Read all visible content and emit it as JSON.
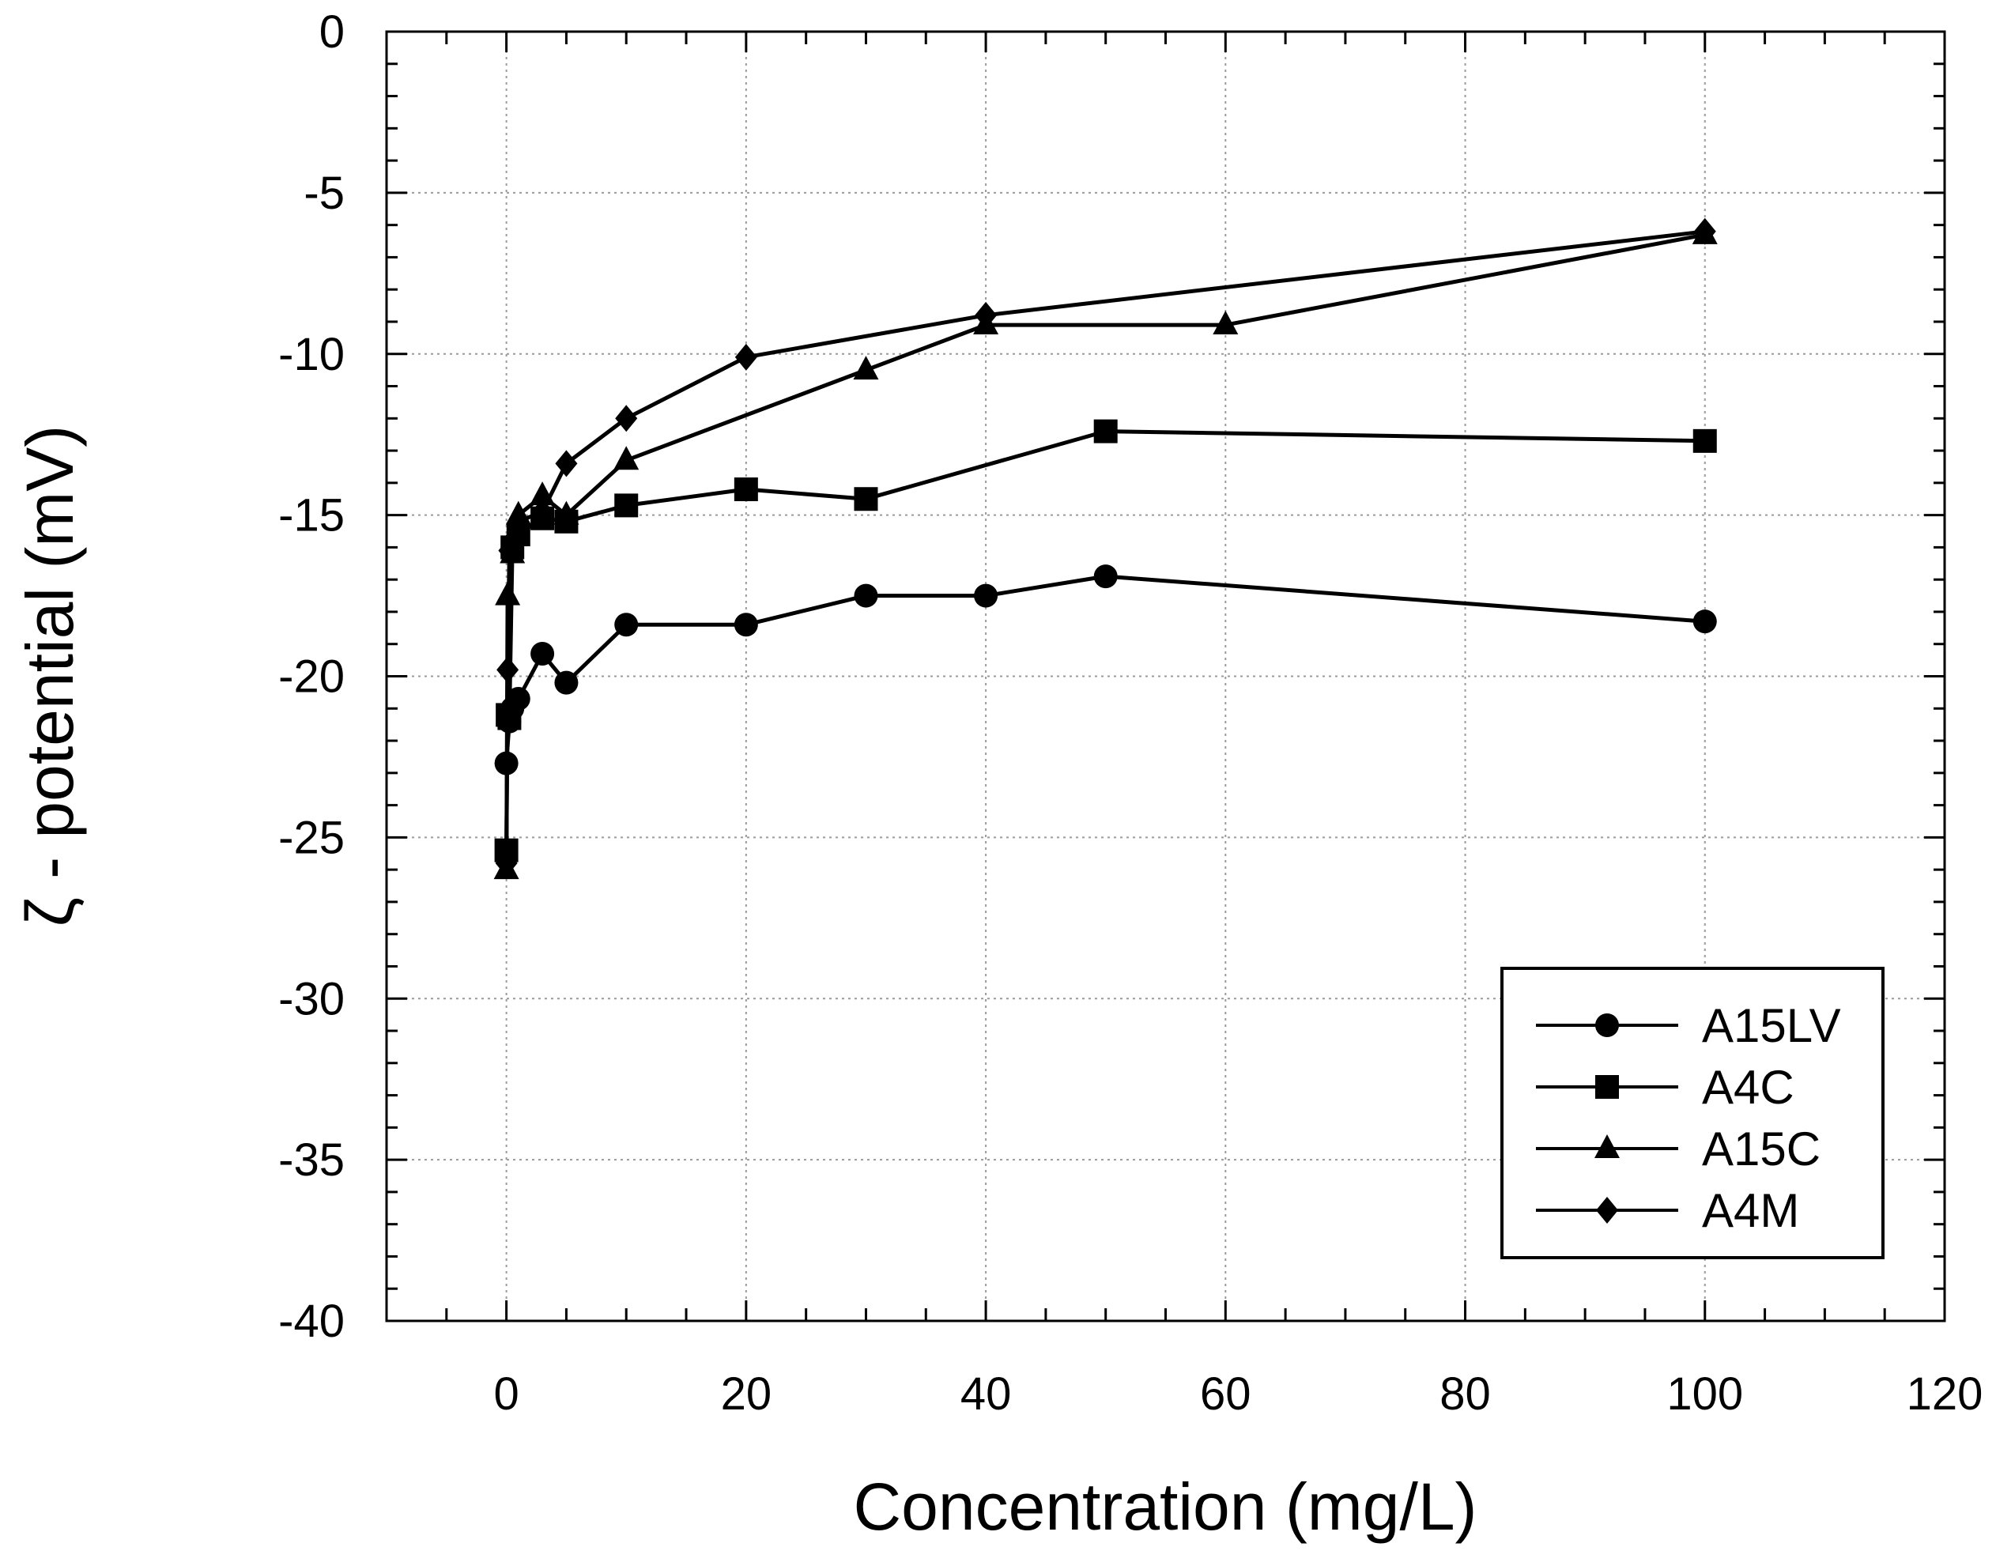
{
  "chart_data": {
    "type": "scatter",
    "xlabel": "Concentration (mg/L)",
    "ylabel": "ζ - potential (mV)",
    "xlim": [
      -10,
      120
    ],
    "ylim": [
      -40,
      0
    ],
    "x_ticks": [
      0,
      20,
      40,
      60,
      80,
      100,
      120
    ],
    "y_ticks": [
      0,
      -5,
      -10,
      -15,
      -20,
      -25,
      -30,
      -35,
      -40
    ],
    "grid": true,
    "legend_position": "bottom-right",
    "series": [
      {
        "name": "A15LV",
        "marker": "circle",
        "points": [
          [
            0,
            -22.7
          ],
          [
            0.25,
            -21.4
          ],
          [
            0.5,
            -21.0
          ],
          [
            1,
            -20.7
          ],
          [
            3,
            -19.3
          ],
          [
            5,
            -20.2
          ],
          [
            10,
            -18.4
          ],
          [
            20,
            -18.4
          ],
          [
            30,
            -17.5
          ],
          [
            40,
            -17.5
          ],
          [
            50,
            -16.9
          ],
          [
            100,
            -18.3
          ]
        ]
      },
      {
        "name": "A4C",
        "marker": "square",
        "points": [
          [
            0,
            -25.4
          ],
          [
            0.1,
            -21.2
          ],
          [
            0.25,
            -21.3
          ],
          [
            0.5,
            -16.0
          ],
          [
            1,
            -15.6
          ],
          [
            3,
            -15.1
          ],
          [
            5,
            -15.2
          ],
          [
            10,
            -14.7
          ],
          [
            20,
            -14.2
          ],
          [
            30,
            -14.5
          ],
          [
            50,
            -12.4
          ],
          [
            100,
            -12.7
          ]
        ]
      },
      {
        "name": "A15C",
        "marker": "triangle",
        "points": [
          [
            0,
            -26.0
          ],
          [
            0.1,
            -17.5
          ],
          [
            0.5,
            -16.2
          ],
          [
            1,
            -15.0
          ],
          [
            3,
            -14.4
          ],
          [
            5,
            -15.0
          ],
          [
            10,
            -13.3
          ],
          [
            30,
            -10.5
          ],
          [
            40,
            -9.1
          ],
          [
            60,
            -9.1
          ],
          [
            100,
            -6.3
          ]
        ]
      },
      {
        "name": "A4M",
        "marker": "diamond",
        "points": [
          [
            0,
            -25.8
          ],
          [
            0.1,
            -19.8
          ],
          [
            0.25,
            -16.1
          ],
          [
            0.5,
            -15.8
          ],
          [
            1,
            -15.2
          ],
          [
            3,
            -14.9
          ],
          [
            5,
            -13.4
          ],
          [
            10,
            -12.0
          ],
          [
            20,
            -10.1
          ],
          [
            40,
            -8.8
          ],
          [
            100,
            -6.2
          ]
        ]
      }
    ]
  }
}
